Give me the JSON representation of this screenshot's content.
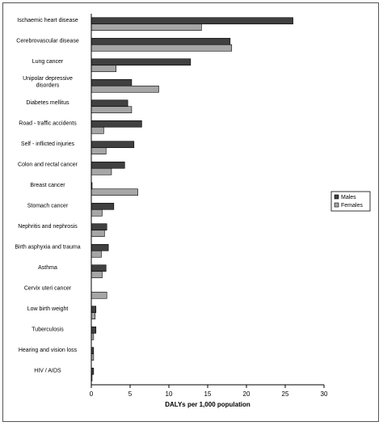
{
  "chart_data": {
    "type": "bar",
    "orientation": "horizontal",
    "title": "",
    "xlabel": "DALYs per 1,000 population",
    "ylabel": "",
    "xlim": [
      0,
      30
    ],
    "xticks": [
      0,
      5,
      10,
      15,
      20,
      25,
      30
    ],
    "grid": false,
    "legend_position": "right",
    "categories": [
      [
        "Ischaemic heart disease"
      ],
      [
        "Cerebrovascular disease"
      ],
      [
        "Lung cancer"
      ],
      [
        "Unipolar depressive",
        "disorders"
      ],
      [
        "Diabetes mellitus"
      ],
      [
        "Road - traffic accidents"
      ],
      [
        "Self - inflicted injuries"
      ],
      [
        "Colon and rectal cancer"
      ],
      [
        "Breast cancer"
      ],
      [
        "Stomach cancer"
      ],
      [
        "Nephritis and nephrosis"
      ],
      [
        "Birth asphyxia and trauma"
      ],
      [
        "Asthma"
      ],
      [
        "Cervix uteri cancer"
      ],
      [
        "Low birth weight"
      ],
      [
        "Tuberculosis"
      ],
      [
        "Hearing and vision loss"
      ],
      [
        "HIV / AIDS"
      ]
    ],
    "series": [
      {
        "name": "Males",
        "color": "#404040",
        "values": [
          26.0,
          17.9,
          12.8,
          5.2,
          4.7,
          6.5,
          5.5,
          4.3,
          0.1,
          2.9,
          2.0,
          2.2,
          1.9,
          0.0,
          0.6,
          0.6,
          0.3,
          0.3
        ]
      },
      {
        "name": "Females",
        "color": "#a6a6a6",
        "values": [
          14.2,
          18.1,
          3.2,
          8.7,
          5.2,
          1.6,
          1.9,
          2.6,
          6.0,
          1.4,
          1.7,
          1.3,
          1.4,
          2.0,
          0.5,
          0.3,
          0.3,
          0.1
        ]
      }
    ]
  }
}
